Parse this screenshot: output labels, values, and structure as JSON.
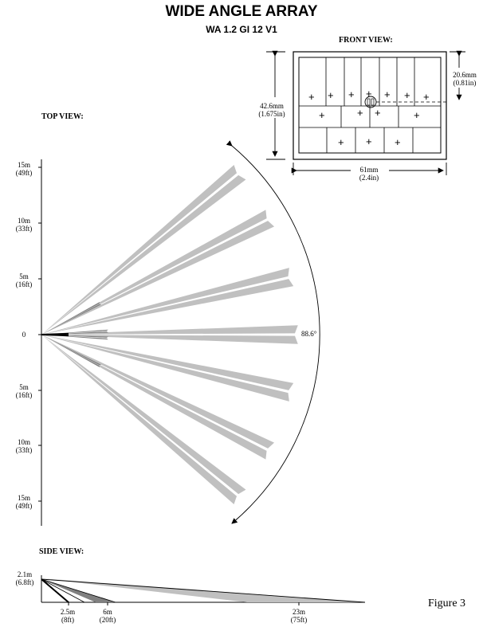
{
  "title": "WIDE ANGLE ARRAY",
  "subtitle": "WA 1.2 GI 12 V1",
  "front_view": {
    "heading": "FRONT VIEW:",
    "height_mm": "42.6mm",
    "height_in": "(1.675in)",
    "window_mm": "20.6mm",
    "window_in": "(0.81in)",
    "width_mm": "61mm",
    "width_in": "(2.4in)"
  },
  "top_view": {
    "heading": "TOP VIEW:",
    "ticks": [
      {
        "m": "15m",
        "ft": "(49ft)"
      },
      {
        "m": "10m",
        "ft": "(33ft)"
      },
      {
        "m": "5m",
        "ft": "(16ft)"
      },
      {
        "m": "0",
        "ft": ""
      },
      {
        "m": "5m",
        "ft": "(16ft)"
      },
      {
        "m": "10m",
        "ft": "(33ft)"
      },
      {
        "m": "15m",
        "ft": "(49ft)"
      }
    ],
    "angle": "88.6°"
  },
  "side_view": {
    "heading": "SIDE VIEW:",
    "height_m": "2.1m",
    "height_ft": "(6.8ft)",
    "distances": [
      {
        "m": "2.5m",
        "ft": "(8ft)"
      },
      {
        "m": "6m",
        "ft": "(20ft)"
      },
      {
        "m": "23m",
        "ft": "(75ft)"
      }
    ]
  },
  "figure_label": "Figure 3",
  "colors": {
    "beam": "#c0c0c0",
    "beam_dark": "#808080",
    "line": "#000000"
  }
}
